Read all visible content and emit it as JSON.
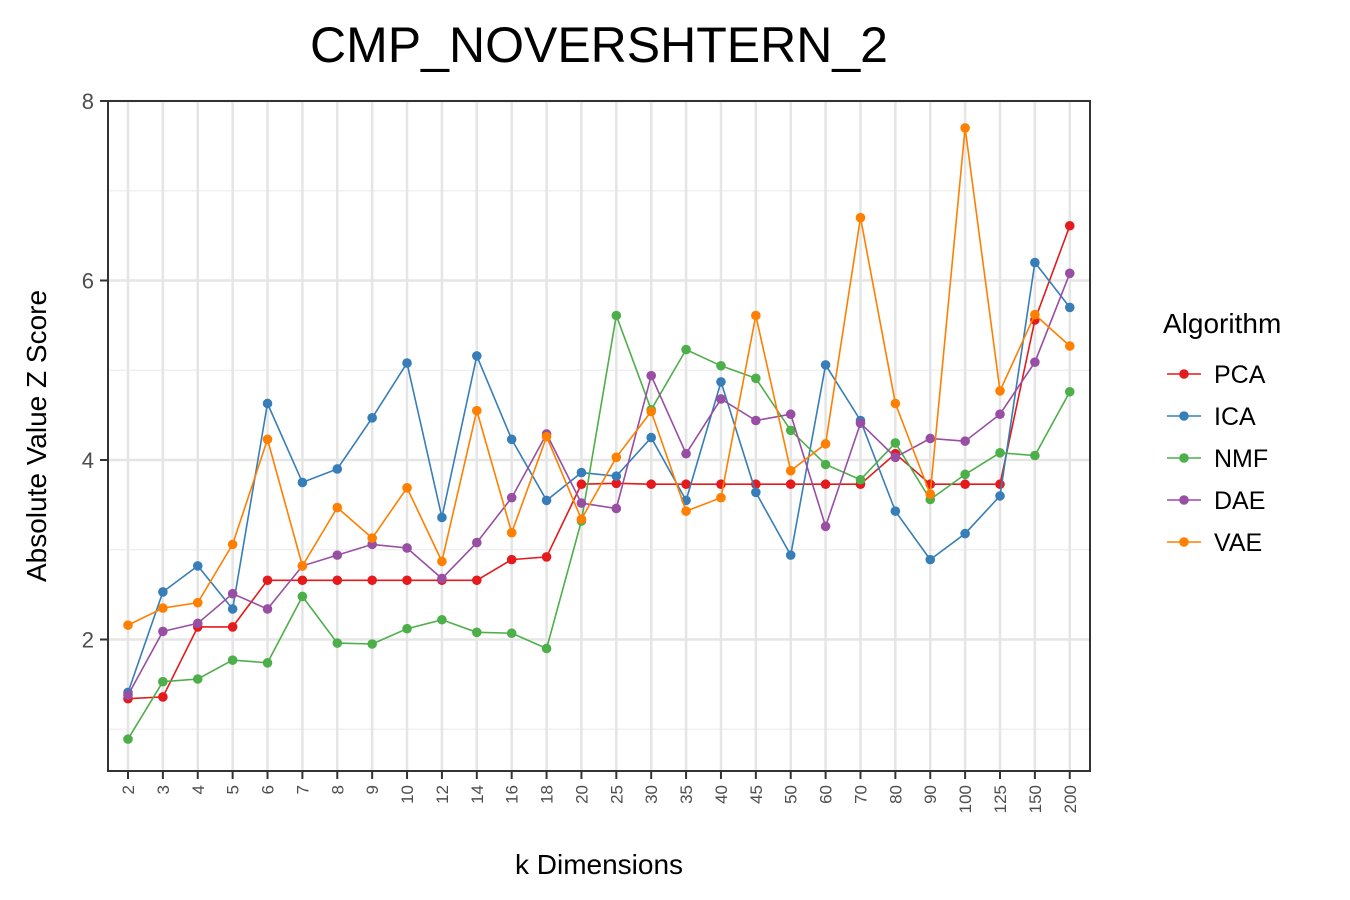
{
  "chart_data": {
    "type": "line",
    "title": "CMP_NOVERSHTERN_2",
    "xlabel": "k Dimensions",
    "ylabel": "Absolute Value Z Score",
    "ylim": [
      0.67,
      8.0
    ],
    "yticks": [
      2,
      4,
      6,
      8
    ],
    "grid": true,
    "legend_title": "Algorithm",
    "legend_position": "right",
    "categories": [
      "2",
      "3",
      "4",
      "5",
      "6",
      "7",
      "8",
      "9",
      "10",
      "12",
      "14",
      "16",
      "18",
      "20",
      "25",
      "30",
      "35",
      "40",
      "45",
      "50",
      "60",
      "70",
      "80",
      "90",
      "100",
      "125",
      "150",
      "200"
    ],
    "series": [
      {
        "name": "PCA",
        "color": "#e41a1c",
        "values": [
          1.34,
          1.36,
          2.14,
          2.14,
          2.66,
          2.66,
          2.66,
          2.66,
          2.66,
          2.66,
          2.66,
          2.89,
          2.92,
          3.73,
          3.74,
          3.73,
          3.73,
          3.73,
          3.73,
          3.73,
          3.73,
          3.73,
          4.07,
          3.73,
          3.73,
          3.73,
          5.56,
          6.61
        ]
      },
      {
        "name": "ICA",
        "color": "#377eb8",
        "values": [
          1.41,
          2.53,
          2.82,
          2.34,
          4.63,
          3.75,
          3.9,
          4.47,
          5.08,
          3.36,
          5.16,
          4.23,
          3.55,
          3.86,
          3.82,
          4.25,
          3.55,
          4.87,
          3.64,
          2.94,
          5.06,
          4.44,
          3.43,
          2.89,
          3.18,
          3.6,
          6.2,
          5.7
        ]
      },
      {
        "name": "NMF",
        "color": "#4daf4a",
        "values": [
          0.89,
          1.53,
          1.56,
          1.77,
          1.74,
          2.48,
          1.96,
          1.95,
          2.12,
          2.22,
          2.08,
          2.07,
          1.9,
          3.32,
          5.61,
          4.56,
          5.23,
          5.05,
          4.91,
          4.33,
          3.95,
          3.78,
          4.19,
          3.56,
          3.84,
          4.08,
          4.05,
          4.76
        ]
      },
      {
        "name": "DAE",
        "color": "#984ea3",
        "values": [
          1.38,
          2.09,
          2.18,
          2.51,
          2.34,
          2.82,
          2.94,
          3.06,
          3.02,
          2.68,
          3.08,
          3.58,
          4.29,
          3.52,
          3.46,
          4.94,
          4.07,
          4.68,
          4.44,
          4.51,
          3.26,
          4.41,
          4.03,
          4.24,
          4.21,
          4.51,
          5.09,
          6.08
        ]
      },
      {
        "name": "VAE",
        "color": "#ff7f00",
        "values": [
          2.16,
          2.35,
          2.41,
          3.06,
          4.23,
          2.82,
          3.47,
          3.13,
          3.69,
          2.87,
          4.55,
          3.19,
          4.26,
          3.34,
          4.03,
          4.54,
          3.43,
          3.58,
          5.61,
          3.88,
          4.18,
          6.7,
          4.63,
          3.62,
          7.7,
          4.77,
          5.62,
          5.27
        ]
      }
    ]
  }
}
